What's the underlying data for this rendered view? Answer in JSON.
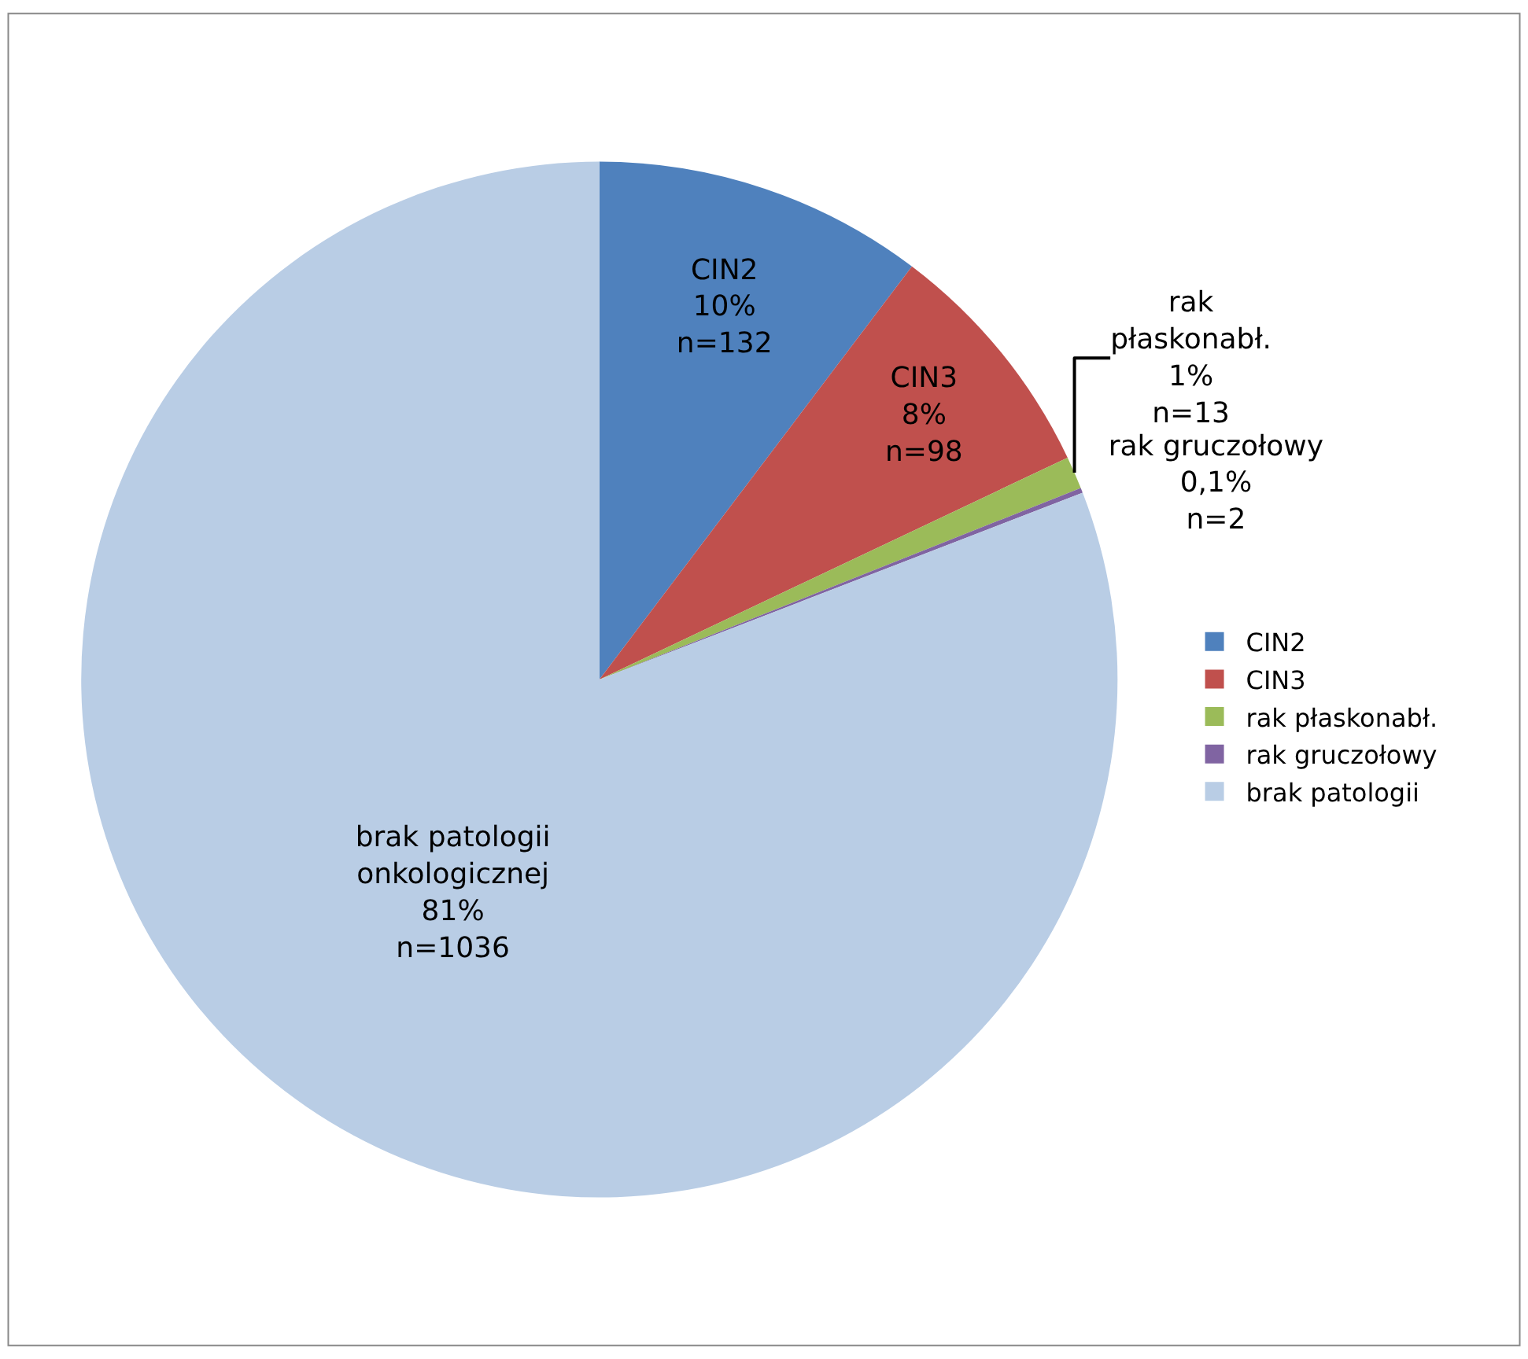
{
  "chart_data": {
    "type": "pie",
    "categories": [
      "CIN2",
      "CIN3",
      "rak płaskonabł.",
      "rak gruczołowy",
      "brak patologii"
    ],
    "values": [
      132,
      98,
      13,
      2,
      1036
    ],
    "colors": [
      "#4f81bd",
      "#c0504d",
      "#9bbb59",
      "#8064a2",
      "#b9cde5"
    ],
    "value_labels": [
      "CIN2\n10%\nn=132",
      "CIN3\n8%\nn=98",
      "rak\npłaskonabł.\n1%\nn=13",
      "rak gruczołowy\n0,1%\nn=2",
      "brak patologii\nonkologicznej\n81%\nn=1036"
    ],
    "legend": "right"
  }
}
